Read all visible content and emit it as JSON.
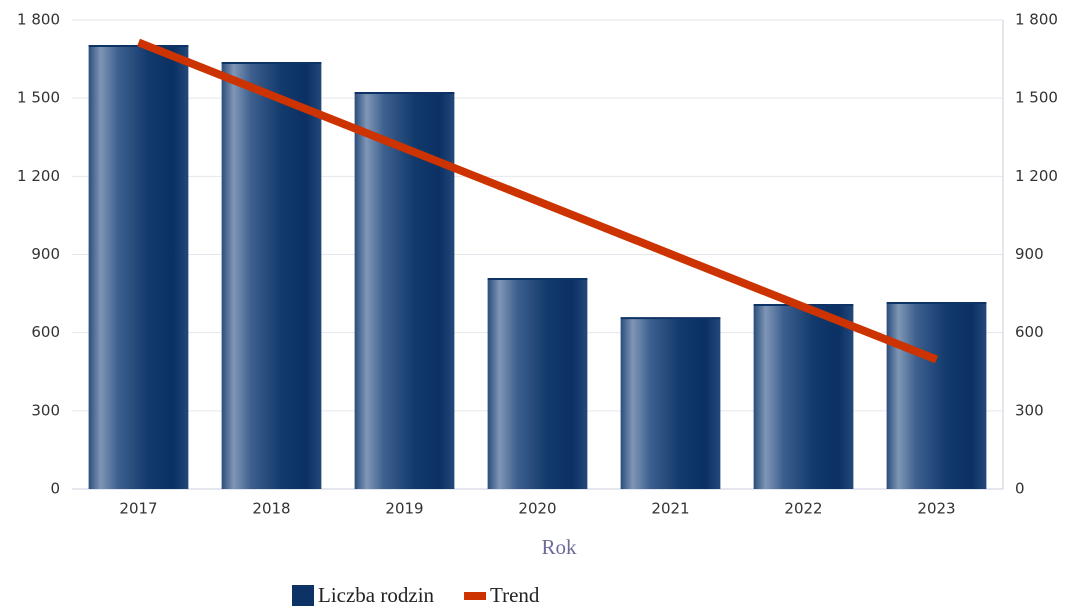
{
  "chart_data": {
    "type": "bar",
    "x_label": "Rok",
    "categories": [
      "2017",
      "2018",
      "2019",
      "2020",
      "2021",
      "2022",
      "2023"
    ],
    "series": [
      {
        "name": "Liczba rodzin",
        "color": "#0d3366",
        "values": [
          1700,
          1635,
          1520,
          806,
          656,
          706,
          714
        ]
      },
      {
        "name": "Trend",
        "type": "line",
        "color": "#cc3300",
        "values": [
          1714,
          1511,
          1308,
          1105,
          902,
          699,
          497
        ]
      }
    ],
    "ylim": [
      0,
      1800
    ],
    "yticks": [
      0,
      300,
      600,
      900,
      {
        "value": 1200,
        "label": "1 200"
      },
      {
        "value": 1500,
        "label": "1 500"
      },
      {
        "value": 1800,
        "label": "1 800"
      }
    ],
    "y2lim": [
      0,
      1800
    ],
    "y2ticks": [
      0,
      300,
      600,
      900,
      {
        "value": 1200,
        "label": "1 200"
      },
      {
        "value": 1500,
        "label": "1 500"
      },
      {
        "value": 1800,
        "label": "1 800"
      }
    ],
    "grid": true,
    "legend": "bottom"
  }
}
